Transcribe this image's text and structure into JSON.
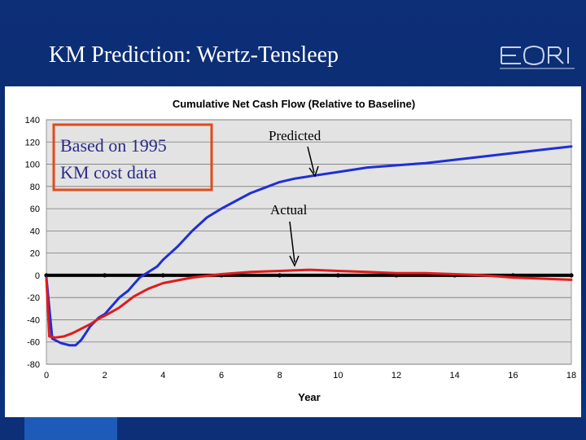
{
  "slide": {
    "title": "KM Prediction: Wertz-Tensleep",
    "logo_text": "EORI"
  },
  "annotations": {
    "box_text_line1": "Based on 1995",
    "box_text_line2": "KM cost data",
    "predicted_label": "Predicted",
    "actual_label": "Actual"
  },
  "colors": {
    "predicted": "#1f2fd6",
    "actual": "#e01b1b",
    "baseline": "#000000",
    "plot_bg": "#e3e3e3",
    "box_border": "#e04a1a"
  },
  "chart_data": {
    "type": "line",
    "title": "Cumulative Net Cash Flow (Relative to Baseline)",
    "xlabel": "Year",
    "ylabel": "",
    "xlim": [
      0,
      18
    ],
    "ylim": [
      -80,
      140
    ],
    "xticks": [
      0,
      2,
      4,
      6,
      8,
      10,
      12,
      14,
      16,
      18
    ],
    "yticks": [
      -80,
      -60,
      -40,
      -20,
      0,
      20,
      40,
      60,
      80,
      100,
      120,
      140
    ],
    "grid": "horizontal",
    "series": [
      {
        "name": "Predicted",
        "x": [
          0,
          0.2,
          0.5,
          0.8,
          1.0,
          1.2,
          1.5,
          1.8,
          2.0,
          2.2,
          2.5,
          2.8,
          3.0,
          3.2,
          3.5,
          3.8,
          4.0,
          4.5,
          5.0,
          5.5,
          6.0,
          6.5,
          7.0,
          7.5,
          8.0,
          8.5,
          9.0,
          10.0,
          11.0,
          12.0,
          13.0,
          14.0,
          15.0,
          16.0,
          17.0,
          18.0
        ],
        "y": [
          -2,
          -57,
          -61,
          -63,
          -63,
          -58,
          -46,
          -38,
          -35,
          -29,
          -20,
          -14,
          -8,
          -2,
          3,
          8,
          14,
          26,
          40,
          52,
          60,
          67,
          74,
          79,
          84,
          87,
          89,
          93,
          97,
          99,
          101,
          104,
          107,
          110,
          113,
          116
        ]
      },
      {
        "name": "Actual",
        "x": [
          0,
          0.1,
          0.3,
          0.6,
          0.9,
          1.2,
          1.5,
          1.8,
          2.1,
          2.5,
          3.0,
          3.5,
          4.0,
          5.0,
          6.0,
          7.0,
          8.0,
          9.0,
          10.0,
          11.0,
          12.0,
          13.0,
          14.0,
          15.0,
          16.0,
          17.0,
          18.0
        ],
        "y": [
          -3,
          -55,
          -56,
          -55,
          -52,
          -48,
          -44,
          -39,
          -35,
          -29,
          -19,
          -12,
          -7,
          -2,
          1,
          3,
          4,
          5,
          4,
          3,
          2,
          2,
          1,
          0,
          -2,
          -3,
          -4
        ]
      }
    ],
    "baseline_markers_x": [
      0,
      2,
      4,
      6,
      8,
      10,
      12,
      14,
      16,
      18
    ]
  }
}
